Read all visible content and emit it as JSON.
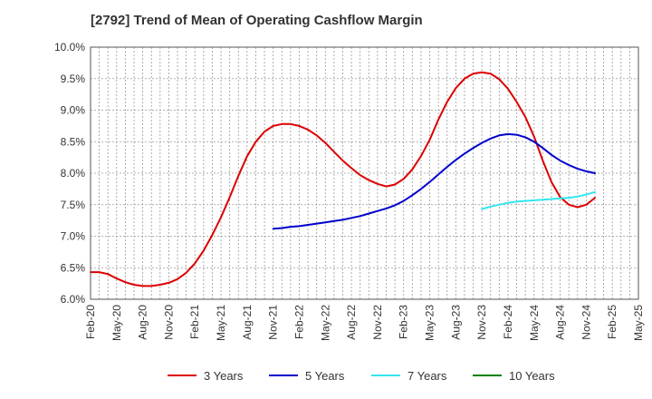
{
  "title": "[2792]  Trend of Mean of Operating Cashflow Margin",
  "chart_data": {
    "type": "line",
    "title": "[2792]  Trend of Mean of Operating Cashflow Margin",
    "xlabel": "",
    "ylabel": "",
    "ylim": [
      6.0,
      10.0
    ],
    "y_ticks": [
      "6.0%",
      "6.5%",
      "7.0%",
      "7.5%",
      "8.0%",
      "8.5%",
      "9.0%",
      "9.5%",
      "10.0%"
    ],
    "x_ticks": [
      "Feb-20",
      "May-20",
      "Aug-20",
      "Nov-20",
      "Feb-21",
      "May-21",
      "Aug-21",
      "Nov-21",
      "Feb-22",
      "May-22",
      "Aug-22",
      "Nov-22",
      "Feb-23",
      "May-23",
      "Aug-23",
      "Nov-23",
      "Feb-24",
      "May-24",
      "Aug-24",
      "Nov-24",
      "Feb-25",
      "May-25"
    ],
    "x_start": "Feb-20",
    "grid": true,
    "legend_position": "bottom",
    "series": [
      {
        "name": "3 Years",
        "color": "#dd0000",
        "start_month": 0,
        "values": [
          6.43,
          6.43,
          6.4,
          6.33,
          6.27,
          6.23,
          6.21,
          6.21,
          6.23,
          6.26,
          6.32,
          6.42,
          6.57,
          6.77,
          7.02,
          7.3,
          7.62,
          7.96,
          8.27,
          8.5,
          8.66,
          8.75,
          8.78,
          8.78,
          8.75,
          8.69,
          8.6,
          8.48,
          8.34,
          8.2,
          8.08,
          7.97,
          7.89,
          7.83,
          7.79,
          7.82,
          7.91,
          8.06,
          8.27,
          8.53,
          8.85,
          9.13,
          9.35,
          9.5,
          9.58,
          9.6,
          9.58,
          9.49,
          9.34,
          9.13,
          8.89,
          8.58,
          8.2,
          7.86,
          7.62,
          7.5,
          7.46,
          7.5,
          7.61
        ]
      },
      {
        "name": "5 Years",
        "color": "#0000cc",
        "start_month": 21,
        "values": [
          7.12,
          7.13,
          7.15,
          7.16,
          7.18,
          7.2,
          7.22,
          7.24,
          7.26,
          7.29,
          7.32,
          7.36,
          7.4,
          7.44,
          7.49,
          7.56,
          7.65,
          7.75,
          7.86,
          7.98,
          8.1,
          8.21,
          8.31,
          8.4,
          8.48,
          8.55,
          8.6,
          8.62,
          8.61,
          8.57,
          8.5,
          8.4,
          8.29,
          8.2,
          8.13,
          8.07,
          8.03,
          8.0
        ]
      },
      {
        "name": "7 Years",
        "color": "#33e5f0",
        "start_month": 45,
        "values": [
          7.43,
          7.47,
          7.5,
          7.53,
          7.55,
          7.56,
          7.57,
          7.58,
          7.59,
          7.6,
          7.61,
          7.63,
          7.66,
          7.7
        ]
      },
      {
        "name": "10 Years",
        "color": "#008000",
        "start_month": 0,
        "values": []
      }
    ]
  }
}
